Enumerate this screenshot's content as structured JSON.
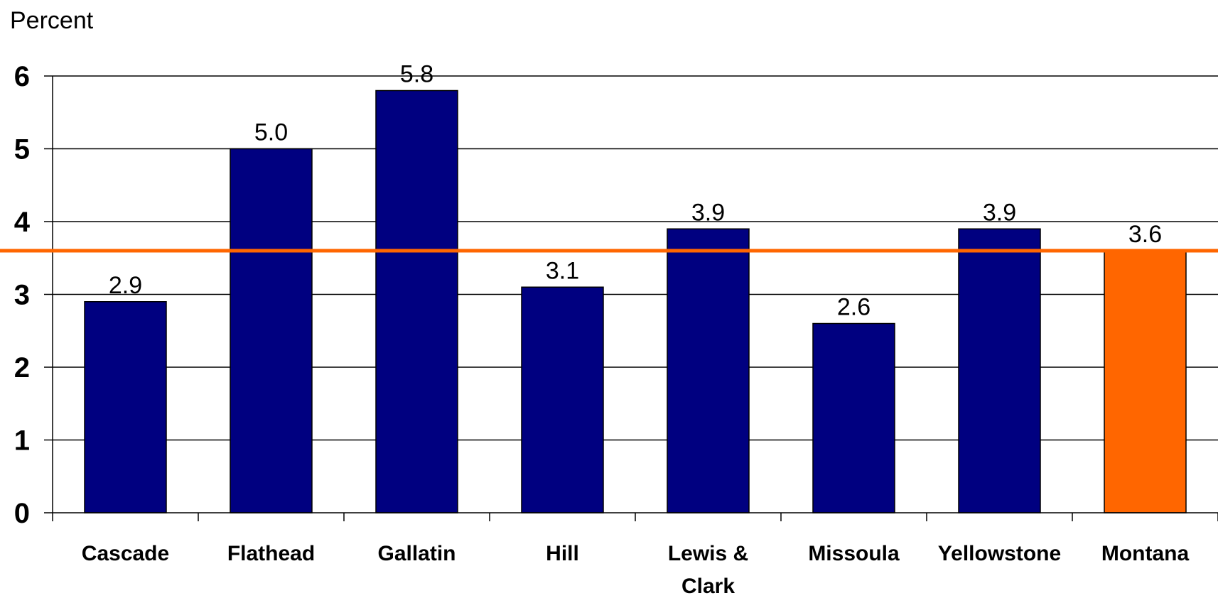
{
  "chart_data": {
    "type": "bar",
    "ylabel": "Percent",
    "ylim": [
      0,
      6
    ],
    "yticks": [
      "0",
      "1",
      "2",
      "3",
      "4",
      "5",
      "6"
    ],
    "categories": [
      "Cascade",
      "Flathead",
      "Gallatin",
      "Hill",
      "Lewis & Clark",
      "Missoula",
      "Yellowstone",
      "Montana"
    ],
    "values": [
      2.9,
      5.0,
      5.8,
      3.1,
      3.9,
      2.6,
      3.9,
      3.6
    ],
    "data_labels": [
      "2.9",
      "5.0",
      "5.8",
      "3.1",
      "3.9",
      "2.6",
      "3.9",
      "3.6"
    ],
    "reference_line": {
      "value": 3.6,
      "color": "#ff6600"
    },
    "grid": true,
    "colors": {
      "bar": "#000080",
      "highlight": "#ff6600",
      "highlight_category": "Montana"
    }
  }
}
